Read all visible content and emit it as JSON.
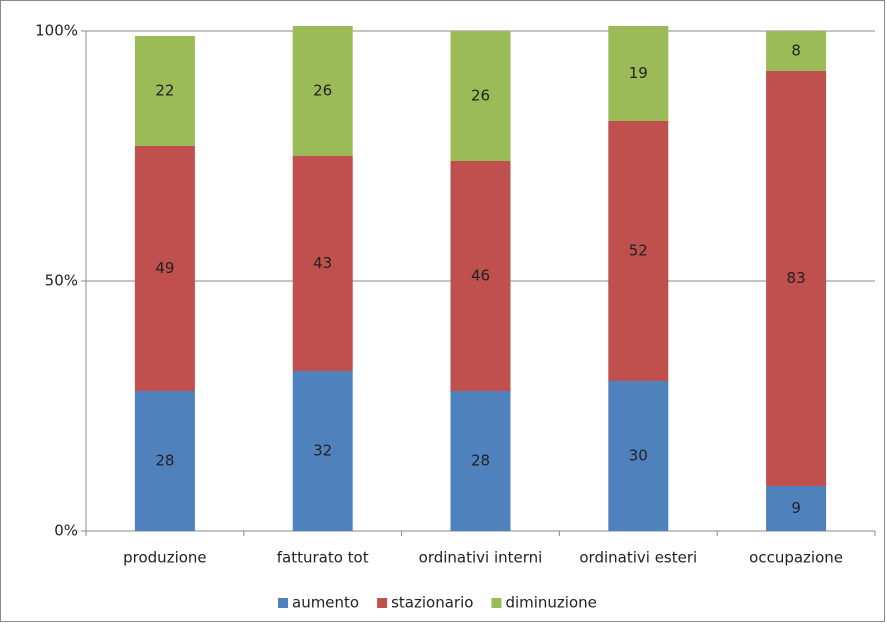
{
  "chart_data": {
    "type": "stacked_bar",
    "categories": [
      "produzione",
      "fatturato tot",
      "ordinativi interni",
      "ordinativi esteri",
      "occupazione"
    ],
    "series": [
      {
        "name": "aumento",
        "color": "#4f81bd",
        "values": [
          28,
          32,
          28,
          30,
          9
        ]
      },
      {
        "name": "stazionario",
        "color": "#c0504d",
        "values": [
          49,
          43,
          46,
          52,
          83
        ]
      },
      {
        "name": "diminuzione",
        "color": "#9bbb59",
        "values": [
          22,
          26,
          26,
          19,
          8
        ]
      }
    ],
    "ylim": [
      0,
      100
    ],
    "yticks": [
      {
        "value": 0,
        "label": "0%"
      },
      {
        "value": 50,
        "label": "50%"
      },
      {
        "value": 100,
        "label": "100%"
      }
    ],
    "grid": true,
    "legend": "bottom"
  }
}
